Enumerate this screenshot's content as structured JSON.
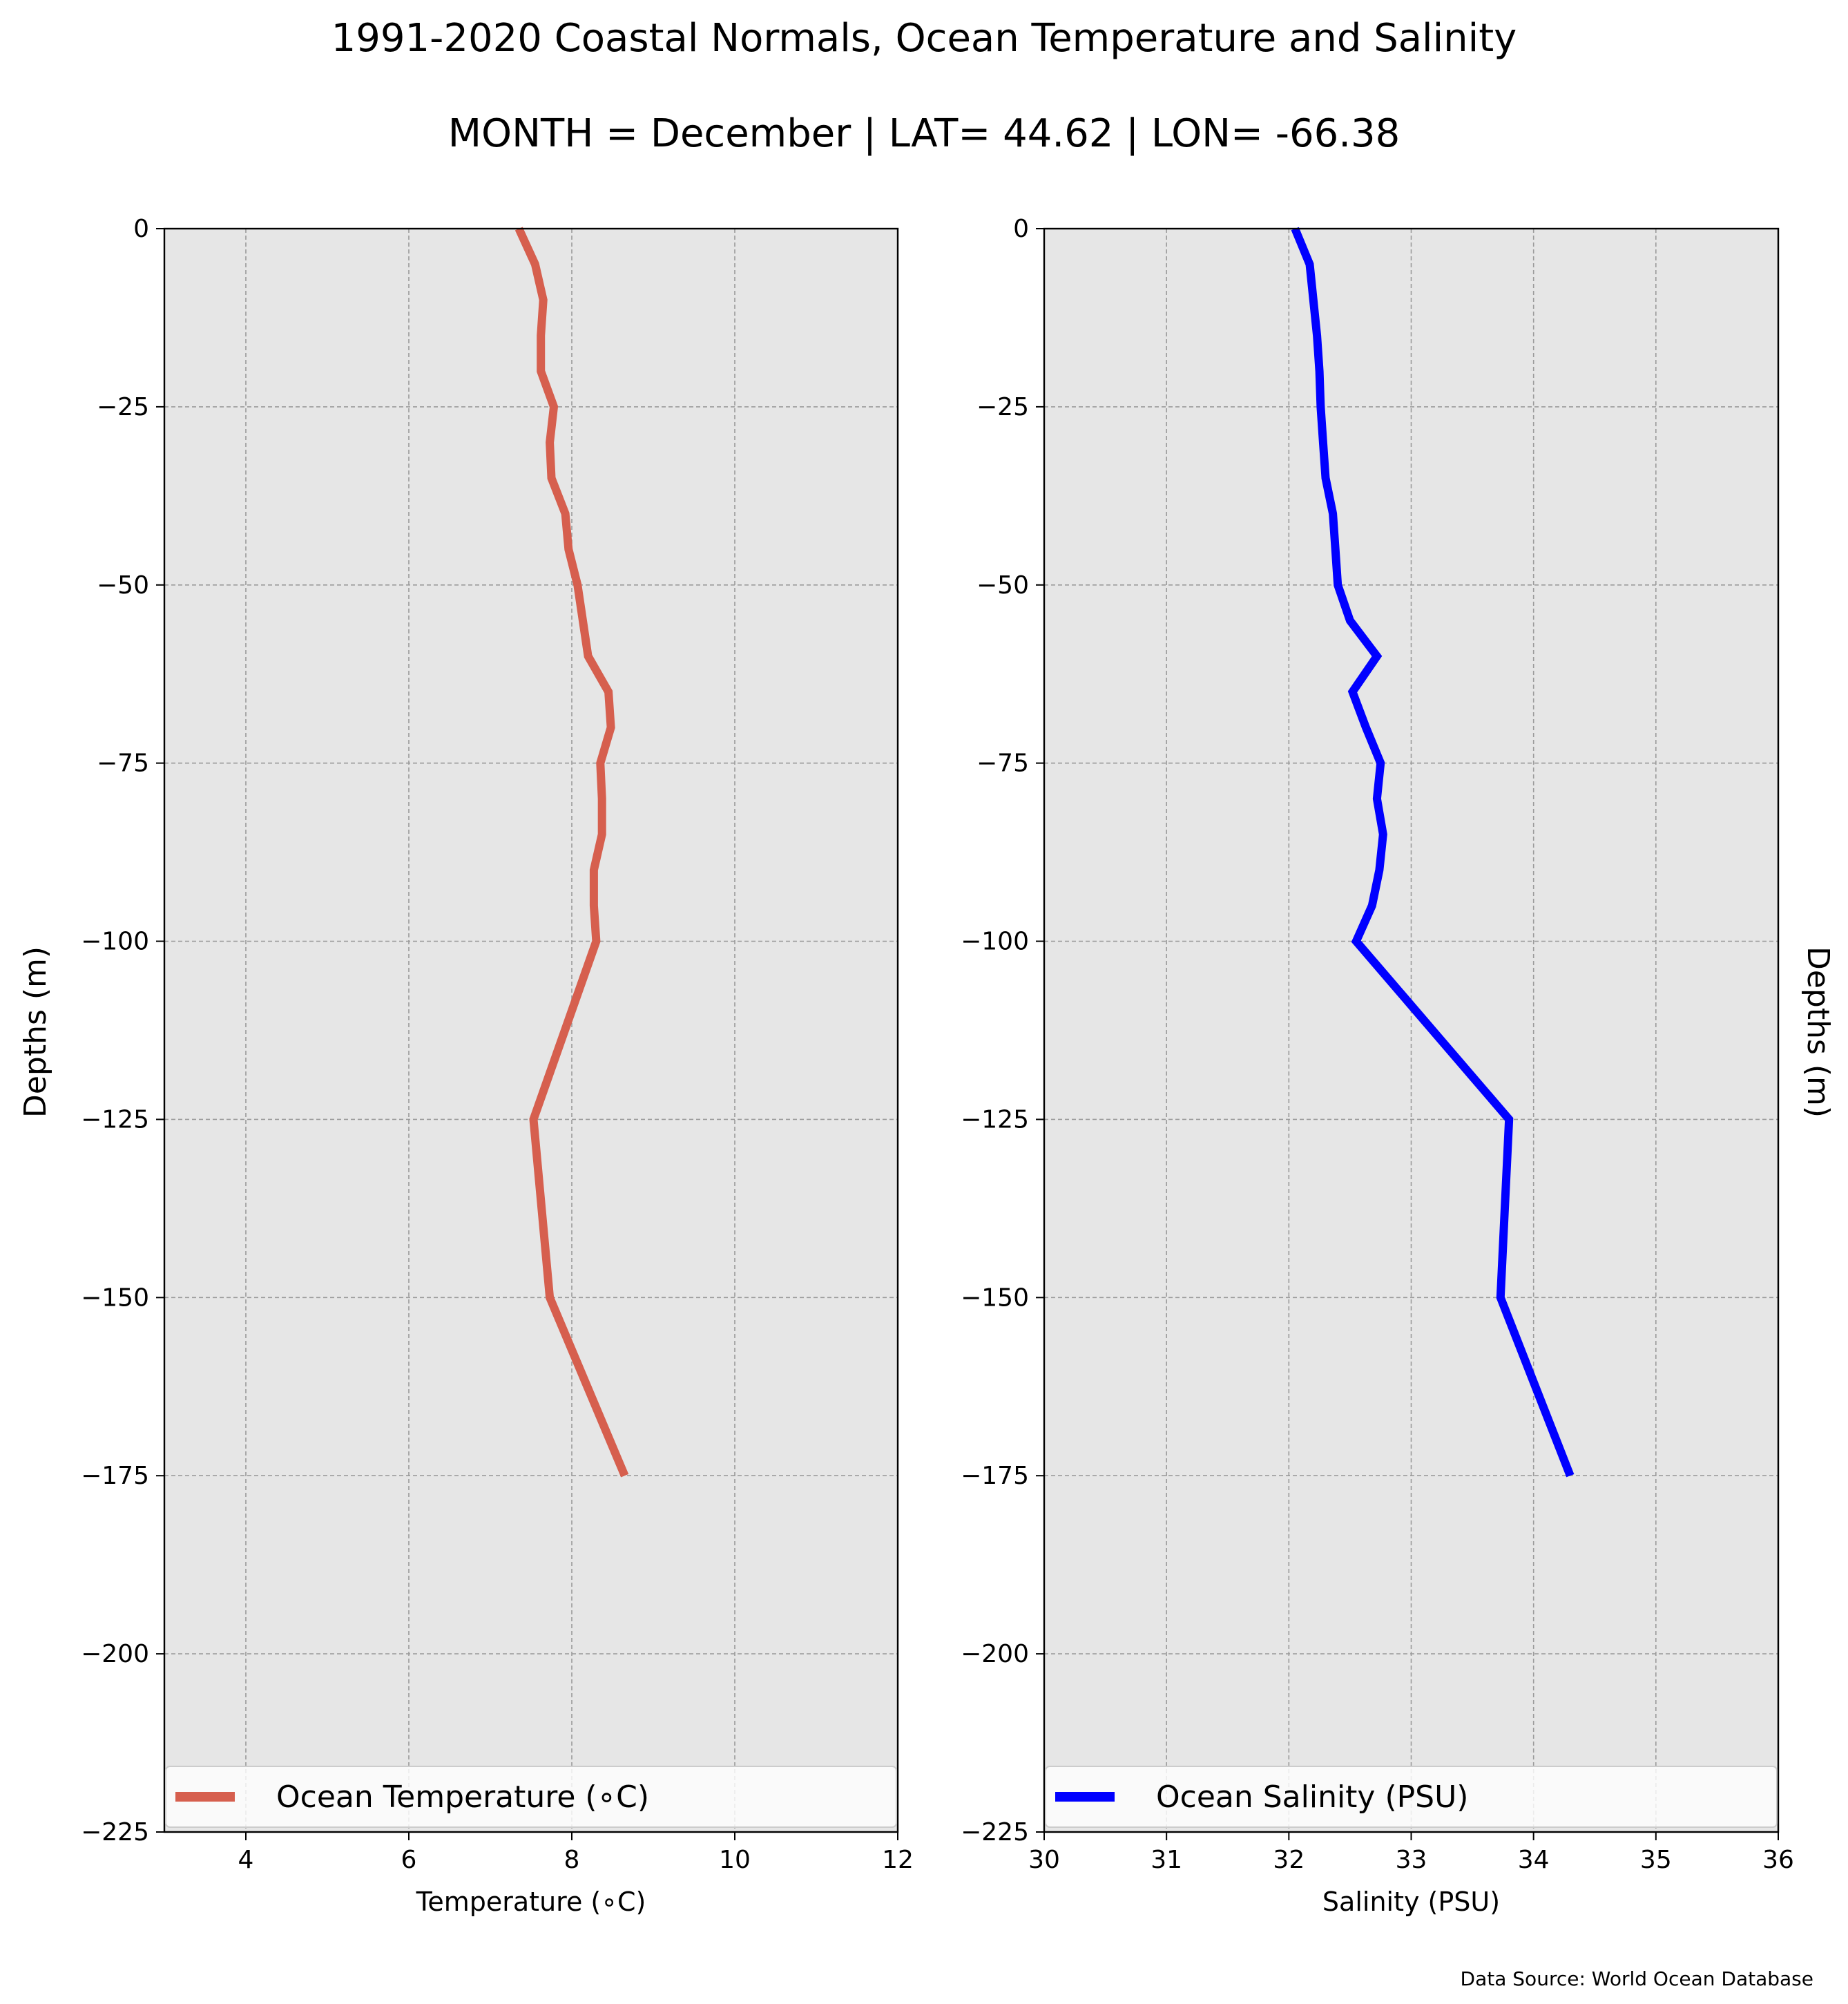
{
  "title": "1991-2020 Coastal Normals, Ocean Temperature and Salinity",
  "subtitle": "MONTH = December | LAT= 44.62 | LON= -66.38",
  "source": "Data Source: World Ocean Database",
  "chart_data": [
    {
      "type": "line",
      "xlabel": "Temperature (∘C)",
      "ylabel": "Depths (m)",
      "xlim": [
        3,
        12
      ],
      "ylim": [
        -225,
        0
      ],
      "xticks": [
        4,
        6,
        8,
        10,
        12
      ],
      "yticks": [
        0,
        -25,
        -50,
        -75,
        -100,
        -125,
        -150,
        -175,
        -200,
        -225
      ],
      "grid": true,
      "legend_position": "lower-center",
      "series": [
        {
          "name": "Ocean Temperature (∘C)",
          "color": "#d65f4e",
          "x": [
            7.35,
            7.55,
            7.65,
            7.62,
            7.62,
            7.78,
            7.73,
            7.75,
            7.92,
            7.96,
            8.07,
            8.2,
            8.45,
            8.48,
            8.35,
            8.37,
            8.37,
            8.27,
            8.27,
            8.3,
            7.53,
            7.73,
            8.65
          ],
          "y": [
            0,
            -5,
            -10,
            -15,
            -20,
            -25,
            -30,
            -35,
            -40,
            -45,
            -50,
            -60,
            -65,
            -70,
            -75,
            -80,
            -85,
            -90,
            -95,
            -100,
            -125,
            -150,
            -175
          ]
        }
      ]
    },
    {
      "type": "line",
      "xlabel": "Salinity (PSU)",
      "ylabel": "Depths (m)",
      "xlim": [
        30,
        36
      ],
      "ylim": [
        -225,
        0
      ],
      "xticks": [
        30,
        31,
        32,
        33,
        34,
        35,
        36
      ],
      "yticks": [
        0,
        -25,
        -50,
        -75,
        -100,
        -125,
        -150,
        -175,
        -200,
        -225
      ],
      "grid": true,
      "legend_position": "lower-center",
      "series": [
        {
          "name": "Ocean Salinity (PSU)",
          "color": "#0000ff",
          "x": [
            32.05,
            32.17,
            32.2,
            32.23,
            32.25,
            32.26,
            32.28,
            32.3,
            32.36,
            32.38,
            32.4,
            32.5,
            32.72,
            32.52,
            32.63,
            32.75,
            32.72,
            32.77,
            32.74,
            32.68,
            32.55,
            33.8,
            33.73,
            34.3
          ],
          "y": [
            0,
            -5,
            -10,
            -15,
            -20,
            -25,
            -30,
            -35,
            -40,
            -45,
            -50,
            -55,
            -60,
            -65,
            -70,
            -75,
            -80,
            -85,
            -90,
            -95,
            -100,
            -125,
            -150,
            -175
          ]
        }
      ]
    }
  ]
}
